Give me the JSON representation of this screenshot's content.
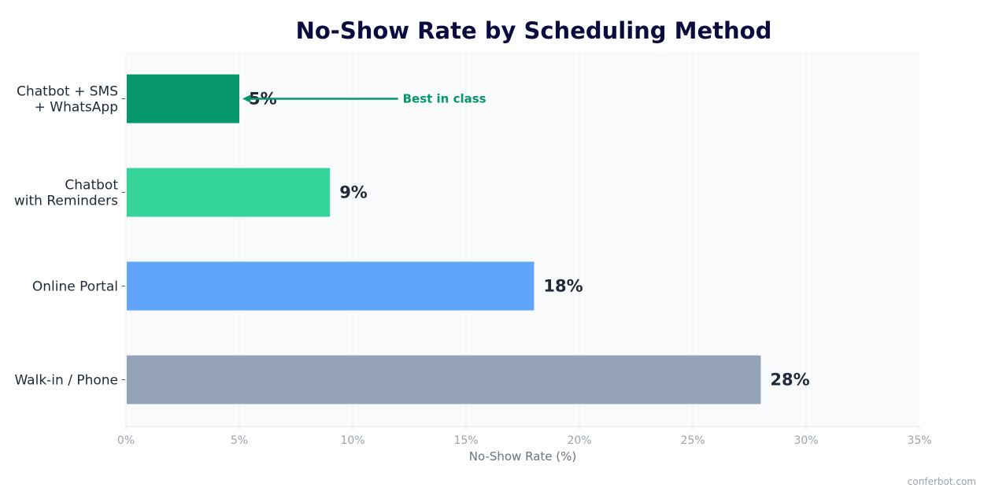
{
  "chart_data": {
    "type": "bar",
    "orientation": "horizontal",
    "title": "No-Show Rate by Scheduling Method",
    "xlabel": "No-Show Rate (%)",
    "ylabel": "",
    "xlim": [
      0,
      35
    ],
    "x_ticks": [
      0,
      5,
      10,
      15,
      20,
      25,
      30,
      35
    ],
    "x_tick_labels": [
      "0%",
      "5%",
      "10%",
      "15%",
      "20%",
      "25%",
      "30%",
      "35%"
    ],
    "grid": "vertical dashed",
    "categories": [
      [
        "Chatbot + SMS",
        "+ WhatsApp"
      ],
      [
        "Chatbot",
        "with Reminders"
      ],
      [
        "Online Portal"
      ],
      [
        "Walk-in / Phone"
      ]
    ],
    "values": [
      5,
      9,
      18,
      28
    ],
    "value_labels": [
      "5%",
      "9%",
      "18%",
      "28%"
    ],
    "colors": [
      "#059669",
      "#34d399",
      "#60a5fa",
      "#94a3b8"
    ],
    "annotation": {
      "text": "Best in class",
      "target_category_index": 0,
      "target_value": 5,
      "text_at_value": 12,
      "color": "#059669"
    }
  },
  "watermark": "conferbot.com",
  "colors": {
    "plot_background": "#f8fafc",
    "title": "#0c0a3e",
    "grid": "#e5e7eb"
  }
}
